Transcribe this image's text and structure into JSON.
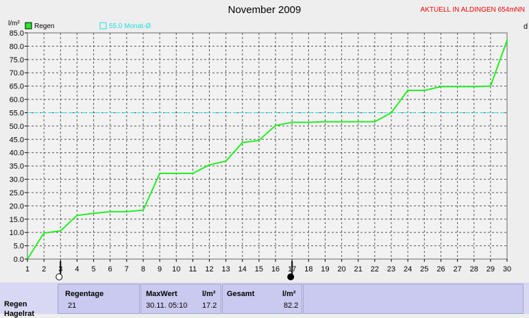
{
  "header": {
    "title": "November 2009",
    "location": "AKTUELL IN ALDINGEN 654mNN"
  },
  "chart_data": {
    "type": "line",
    "ylabel": "l/m²",
    "right_axis_label": "d",
    "x": [
      1,
      2,
      3,
      4,
      5,
      6,
      7,
      8,
      9,
      10,
      11,
      12,
      13,
      14,
      15,
      16,
      17,
      18,
      19,
      20,
      21,
      22,
      23,
      24,
      25,
      26,
      27,
      28,
      29,
      30
    ],
    "series": [
      {
        "name": "Regen",
        "color": "#22ee22",
        "values": [
          0.0,
          9.8,
          10.6,
          16.4,
          17.2,
          17.8,
          17.8,
          18.4,
          32.2,
          32.2,
          32.2,
          35.4,
          36.8,
          43.8,
          44.6,
          50.2,
          51.4,
          51.4,
          51.6,
          51.6,
          51.6,
          51.6,
          55.0,
          63.4,
          63.4,
          64.8,
          64.8,
          64.8,
          65.0,
          82.2
        ]
      }
    ],
    "reference_line": {
      "label": "55.0 Monat-Ø",
      "value": 55.0,
      "color": "#22dddd"
    },
    "xlim": [
      1,
      30
    ],
    "ylim": [
      0,
      85
    ],
    "y_ticks": [
      "0.0",
      "5.0",
      "10.0",
      "15.0",
      "20.0",
      "25.0",
      "30.0",
      "35.0",
      "40.0",
      "45.0",
      "50.0",
      "55.0",
      "60.0",
      "65.0",
      "70.0",
      "75.0",
      "80.0",
      "85.0"
    ],
    "x_ticks": [
      "1",
      "2",
      "3",
      "4",
      "5",
      "6",
      "7",
      "8",
      "9",
      "10",
      "11",
      "12",
      "13",
      "14",
      "15",
      "16",
      "17",
      "18",
      "19",
      "20",
      "21",
      "22",
      "23",
      "24",
      "25",
      "26",
      "27",
      "28",
      "29",
      "30"
    ],
    "moon_phases": [
      {
        "day": 3,
        "phase": "full-moon"
      },
      {
        "day": 17,
        "phase": "new-moon"
      }
    ],
    "grid": true,
    "legend_position": "top-left"
  },
  "stats": {
    "row_label": "Regen",
    "row_label_2": "Hagelrat",
    "regentage_label": "Regentage",
    "regentage_value": "21",
    "maxwert_label": "MaxWert",
    "maxwert_unit": "l/m²",
    "maxwert_time": "30.11.  05:10",
    "maxwert_value": "17.2",
    "gesamt_label": "Gesamt",
    "gesamt_unit": "l/m²",
    "gesamt_value": "82.2"
  }
}
